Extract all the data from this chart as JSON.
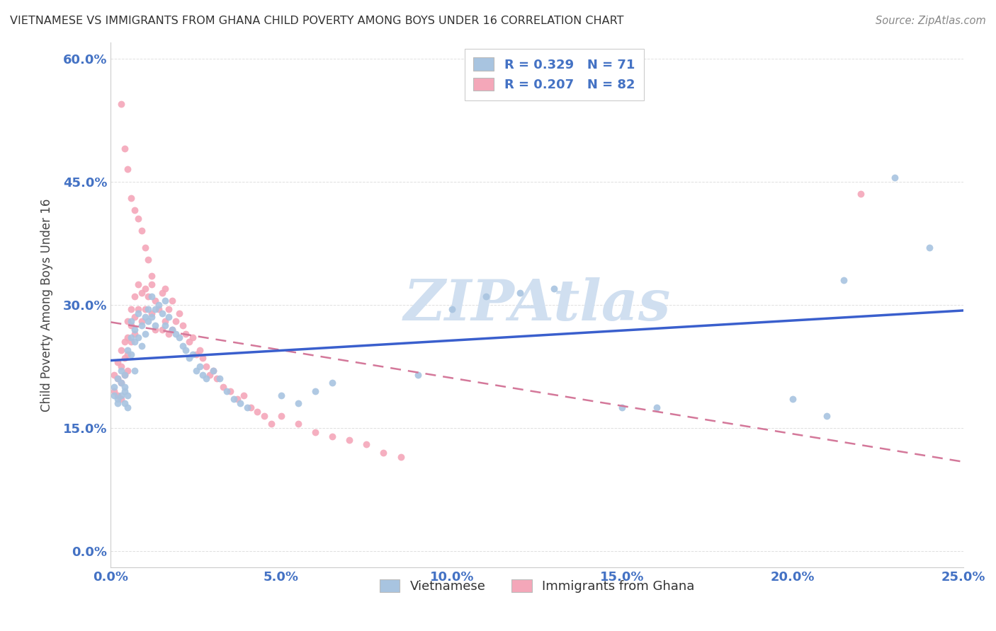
{
  "title": "VIETNAMESE VS IMMIGRANTS FROM GHANA CHILD POVERTY AMONG BOYS UNDER 16 CORRELATION CHART",
  "source": "Source: ZipAtlas.com",
  "xlabel_ticks": [
    "0.0%",
    "5.0%",
    "10.0%",
    "15.0%",
    "20.0%",
    "25.0%"
  ],
  "ylabel_ticks": [
    "0.0%",
    "15.0%",
    "30.0%",
    "45.0%",
    "60.0%"
  ],
  "xlim": [
    0.0,
    0.25
  ],
  "ylim": [
    -0.02,
    0.62
  ],
  "legend_label1": "Vietnamese",
  "legend_label2": "Immigrants from Ghana",
  "R1": 0.329,
  "N1": 71,
  "R2": 0.207,
  "N2": 82,
  "color_viet": "#a8c4e0",
  "color_ghana": "#f4a7b9",
  "line_color_viet": "#3a5fcd",
  "line_color_ghana": "#d4789a",
  "watermark_color": "#d0dff0",
  "background": "#ffffff",
  "grid_color": "#e0e0e0",
  "title_color": "#333333",
  "source_color": "#888888",
  "ylabel": "Child Poverty Among Boys Under 16",
  "scatter_viet_x": [
    0.001,
    0.001,
    0.002,
    0.002,
    0.002,
    0.003,
    0.003,
    0.003,
    0.004,
    0.004,
    0.004,
    0.004,
    0.005,
    0.005,
    0.005,
    0.006,
    0.006,
    0.006,
    0.007,
    0.007,
    0.007,
    0.008,
    0.008,
    0.009,
    0.009,
    0.01,
    0.01,
    0.011,
    0.011,
    0.012,
    0.012,
    0.013,
    0.013,
    0.014,
    0.015,
    0.016,
    0.016,
    0.017,
    0.018,
    0.019,
    0.02,
    0.021,
    0.022,
    0.023,
    0.024,
    0.025,
    0.026,
    0.027,
    0.028,
    0.03,
    0.032,
    0.034,
    0.036,
    0.038,
    0.04,
    0.05,
    0.055,
    0.06,
    0.065,
    0.09,
    0.1,
    0.11,
    0.12,
    0.13,
    0.15,
    0.16,
    0.2,
    0.21,
    0.215,
    0.23,
    0.24
  ],
  "scatter_viet_y": [
    0.2,
    0.19,
    0.21,
    0.185,
    0.18,
    0.22,
    0.205,
    0.19,
    0.215,
    0.2,
    0.195,
    0.18,
    0.245,
    0.19,
    0.175,
    0.28,
    0.26,
    0.24,
    0.27,
    0.255,
    0.22,
    0.29,
    0.26,
    0.275,
    0.25,
    0.285,
    0.265,
    0.295,
    0.28,
    0.31,
    0.285,
    0.295,
    0.275,
    0.3,
    0.29,
    0.305,
    0.275,
    0.285,
    0.27,
    0.265,
    0.26,
    0.25,
    0.245,
    0.235,
    0.24,
    0.22,
    0.225,
    0.215,
    0.21,
    0.22,
    0.21,
    0.195,
    0.185,
    0.18,
    0.175,
    0.19,
    0.18,
    0.195,
    0.205,
    0.215,
    0.295,
    0.31,
    0.315,
    0.32,
    0.175,
    0.175,
    0.185,
    0.165,
    0.33,
    0.455,
    0.37
  ],
  "scatter_ghana_x": [
    0.001,
    0.001,
    0.002,
    0.002,
    0.002,
    0.003,
    0.003,
    0.003,
    0.003,
    0.004,
    0.004,
    0.004,
    0.005,
    0.005,
    0.005,
    0.005,
    0.006,
    0.006,
    0.006,
    0.007,
    0.007,
    0.007,
    0.008,
    0.008,
    0.009,
    0.009,
    0.01,
    0.01,
    0.011,
    0.012,
    0.012,
    0.013,
    0.013,
    0.014,
    0.015,
    0.015,
    0.016,
    0.016,
    0.017,
    0.017,
    0.018,
    0.018,
    0.019,
    0.02,
    0.021,
    0.022,
    0.023,
    0.024,
    0.025,
    0.026,
    0.027,
    0.028,
    0.029,
    0.03,
    0.031,
    0.033,
    0.035,
    0.037,
    0.039,
    0.041,
    0.043,
    0.045,
    0.047,
    0.05,
    0.055,
    0.06,
    0.065,
    0.07,
    0.075,
    0.08,
    0.085,
    0.003,
    0.004,
    0.005,
    0.006,
    0.007,
    0.008,
    0.009,
    0.01,
    0.011,
    0.012,
    0.22
  ],
  "scatter_ghana_y": [
    0.215,
    0.195,
    0.23,
    0.21,
    0.19,
    0.245,
    0.225,
    0.205,
    0.185,
    0.255,
    0.235,
    0.215,
    0.28,
    0.26,
    0.24,
    0.22,
    0.295,
    0.275,
    0.255,
    0.31,
    0.285,
    0.265,
    0.325,
    0.295,
    0.315,
    0.28,
    0.32,
    0.295,
    0.31,
    0.325,
    0.29,
    0.305,
    0.27,
    0.295,
    0.315,
    0.27,
    0.32,
    0.28,
    0.295,
    0.265,
    0.305,
    0.27,
    0.28,
    0.29,
    0.275,
    0.265,
    0.255,
    0.26,
    0.24,
    0.245,
    0.235,
    0.225,
    0.215,
    0.22,
    0.21,
    0.2,
    0.195,
    0.185,
    0.19,
    0.175,
    0.17,
    0.165,
    0.155,
    0.165,
    0.155,
    0.145,
    0.14,
    0.135,
    0.13,
    0.12,
    0.115,
    0.545,
    0.49,
    0.465,
    0.43,
    0.415,
    0.405,
    0.39,
    0.37,
    0.355,
    0.335,
    0.435
  ]
}
